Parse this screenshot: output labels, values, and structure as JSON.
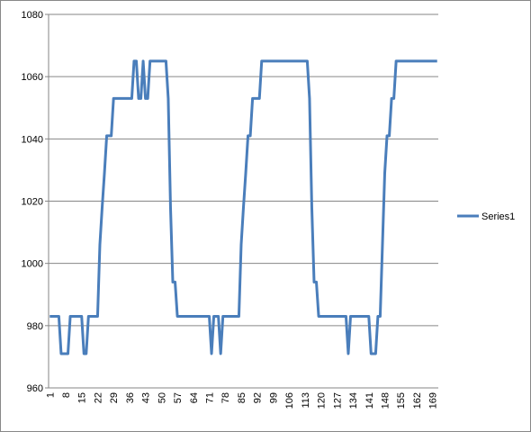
{
  "chart_data": {
    "type": "line",
    "categories": [
      1,
      null,
      null,
      null,
      null,
      null,
      null,
      8,
      null,
      null,
      null,
      null,
      null,
      null,
      15,
      null,
      null,
      null,
      null,
      null,
      null,
      22,
      null,
      null,
      null,
      null,
      null,
      null,
      29,
      null,
      null,
      null,
      null,
      null,
      null,
      36,
      null,
      null,
      null,
      null,
      null,
      null,
      43,
      null,
      null,
      null,
      null,
      null,
      null,
      50,
      null,
      null,
      null,
      null,
      null,
      null,
      57,
      null,
      null,
      null,
      null,
      null,
      null,
      64,
      null,
      null,
      null,
      null,
      null,
      null,
      71,
      null,
      null,
      null,
      null,
      null,
      null,
      78,
      null,
      null,
      null,
      null,
      null,
      null,
      85,
      null,
      null,
      null,
      null,
      null,
      null,
      92,
      null,
      null,
      null,
      null,
      null,
      null,
      99,
      null,
      null,
      null,
      null,
      null,
      null,
      106,
      null,
      null,
      null,
      null,
      null,
      null,
      113,
      null,
      null,
      null,
      null,
      null,
      null,
      120,
      null,
      null,
      null,
      null,
      null,
      null,
      127,
      null,
      null,
      null,
      null,
      null,
      null,
      134,
      null,
      null,
      null,
      null,
      null,
      null,
      141,
      null,
      null,
      null,
      null,
      null,
      null,
      148,
      null,
      null,
      null,
      null,
      null,
      null,
      155,
      null,
      null,
      null,
      null,
      null,
      null,
      162,
      null,
      null,
      null,
      null,
      null,
      null,
      169,
      null,
      null
    ],
    "series": [
      {
        "name": "Series1",
        "color": "#4a7ebb",
        "values": [
          983,
          983,
          983,
          983,
          983,
          971,
          971,
          971,
          971,
          983,
          983,
          983,
          983,
          983,
          983,
          971,
          971,
          983,
          983,
          983,
          983,
          983,
          1006,
          1018,
          1029,
          1041,
          1041,
          1041,
          1053,
          1053,
          1053,
          1053,
          1053,
          1053,
          1053,
          1053,
          1053,
          1065,
          1065,
          1053,
          1053,
          1065,
          1053,
          1053,
          1065,
          1065,
          1065,
          1065,
          1065,
          1065,
          1065,
          1065,
          1053,
          1018,
          994,
          994,
          983,
          983,
          983,
          983,
          983,
          983,
          983,
          983,
          983,
          983,
          983,
          983,
          983,
          983,
          983,
          971,
          983,
          983,
          983,
          971,
          983,
          983,
          983,
          983,
          983,
          983,
          983,
          983,
          1006,
          1018,
          1029,
          1041,
          1041,
          1053,
          1053,
          1053,
          1053,
          1065,
          1065,
          1065,
          1065,
          1065,
          1065,
          1065,
          1065,
          1065,
          1065,
          1065,
          1065,
          1065,
          1065,
          1065,
          1065,
          1065,
          1065,
          1065,
          1065,
          1065,
          1053,
          1018,
          994,
          994,
          983,
          983,
          983,
          983,
          983,
          983,
          983,
          983,
          983,
          983,
          983,
          983,
          983,
          971,
          983,
          983,
          983,
          983,
          983,
          983,
          983,
          983,
          983,
          971,
          971,
          971,
          983,
          983,
          1006,
          1029,
          1041,
          1041,
          1053,
          1053,
          1065,
          1065,
          1065,
          1065,
          1065,
          1065,
          1065,
          1065,
          1065,
          1065,
          1065,
          1065,
          1065,
          1065,
          1065,
          1065,
          1065,
          1065,
          1065
        ]
      }
    ],
    "ylim": [
      960,
      1080
    ],
    "yticks": [
      960,
      980,
      1000,
      1020,
      1040,
      1060,
      1080
    ],
    "grid": true,
    "legend": "right"
  }
}
